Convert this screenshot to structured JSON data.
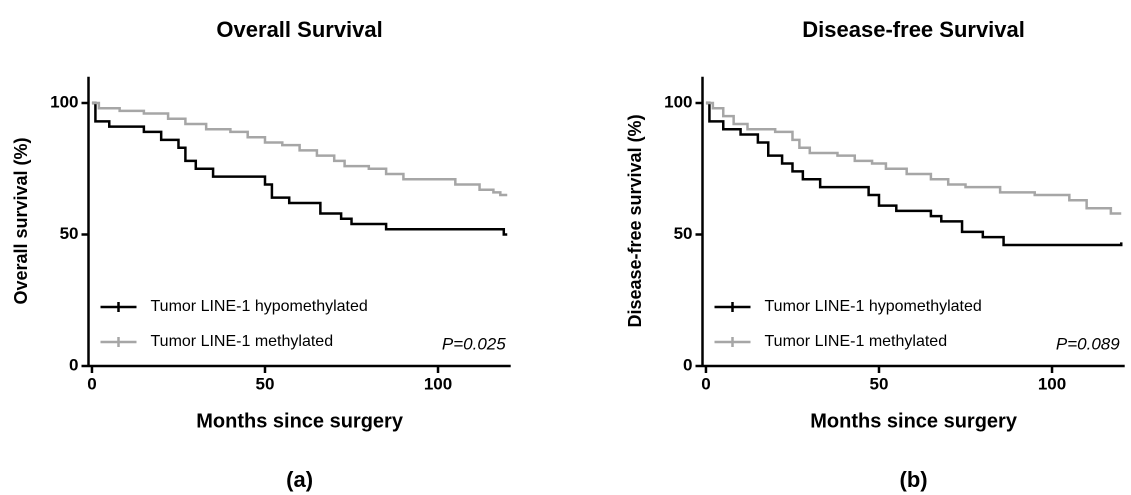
{
  "chart_data": [
    {
      "type": "step",
      "title": "Overall Survival",
      "x_label": "Months since surgery",
      "y_label": "Overall survival (%)",
      "annotation": "P=0.025",
      "panel_label": "(a)",
      "xlim": [
        -1,
        121
      ],
      "ylim": [
        0,
        110
      ],
      "xticks": [
        0,
        50,
        100
      ],
      "yticks": [
        0,
        50,
        100
      ],
      "legend": "lower left",
      "series": [
        {
          "name": "Tumor LINE-1 hypomethylated",
          "color": "#000000",
          "x": [
            0,
            1,
            5,
            15,
            20,
            25,
            27,
            30,
            35,
            50,
            52,
            57,
            66,
            72,
            75,
            85,
            119,
            120
          ],
          "values": [
            100,
            93,
            91,
            89,
            86,
            83,
            78,
            75,
            72,
            69,
            64,
            62,
            58,
            56,
            54,
            52,
            50,
            50
          ]
        },
        {
          "name": "Tumor LINE-1 methylated",
          "color": "#a6a6a6",
          "x": [
            0,
            2,
            8,
            15,
            22,
            27,
            33,
            40,
            45,
            50,
            55,
            60,
            65,
            70,
            73,
            80,
            85,
            90,
            105,
            112,
            116,
            118,
            120
          ],
          "values": [
            100,
            98,
            97,
            96,
            94,
            92,
            90,
            89,
            87,
            85,
            84,
            82,
            80,
            78,
            76,
            75,
            73,
            71,
            69,
            67,
            66,
            65,
            65
          ]
        }
      ]
    },
    {
      "type": "step",
      "title": "Disease-free Survival",
      "x_label": "Months since surgery",
      "y_label": "Disease-free survival (%)",
      "annotation": "P=0.089",
      "panel_label": "(b)",
      "xlim": [
        -1,
        121
      ],
      "ylim": [
        0,
        110
      ],
      "xticks": [
        0,
        50,
        100
      ],
      "yticks": [
        0,
        50,
        100
      ],
      "legend": "lower left",
      "series": [
        {
          "name": "Tumor LINE-1 hypomethylated",
          "color": "#000000",
          "x": [
            0,
            1,
            5,
            10,
            15,
            18,
            22,
            25,
            28,
            33,
            47,
            50,
            55,
            65,
            68,
            74,
            80,
            86,
            120
          ],
          "values": [
            100,
            93,
            90,
            88,
            85,
            80,
            77,
            74,
            71,
            68,
            65,
            61,
            59,
            57,
            55,
            51,
            49,
            46,
            47
          ]
        },
        {
          "name": "Tumor LINE-1 methylated",
          "color": "#a6a6a6",
          "x": [
            0,
            2,
            5,
            8,
            12,
            20,
            25,
            27,
            30,
            38,
            43,
            48,
            52,
            58,
            65,
            70,
            75,
            85,
            95,
            105,
            110,
            117,
            120
          ],
          "values": [
            100,
            98,
            95,
            92,
            90,
            89,
            86,
            83,
            81,
            80,
            78,
            77,
            75,
            73,
            71,
            69,
            68,
            66,
            65,
            63,
            60,
            58,
            58
          ]
        }
      ]
    }
  ]
}
